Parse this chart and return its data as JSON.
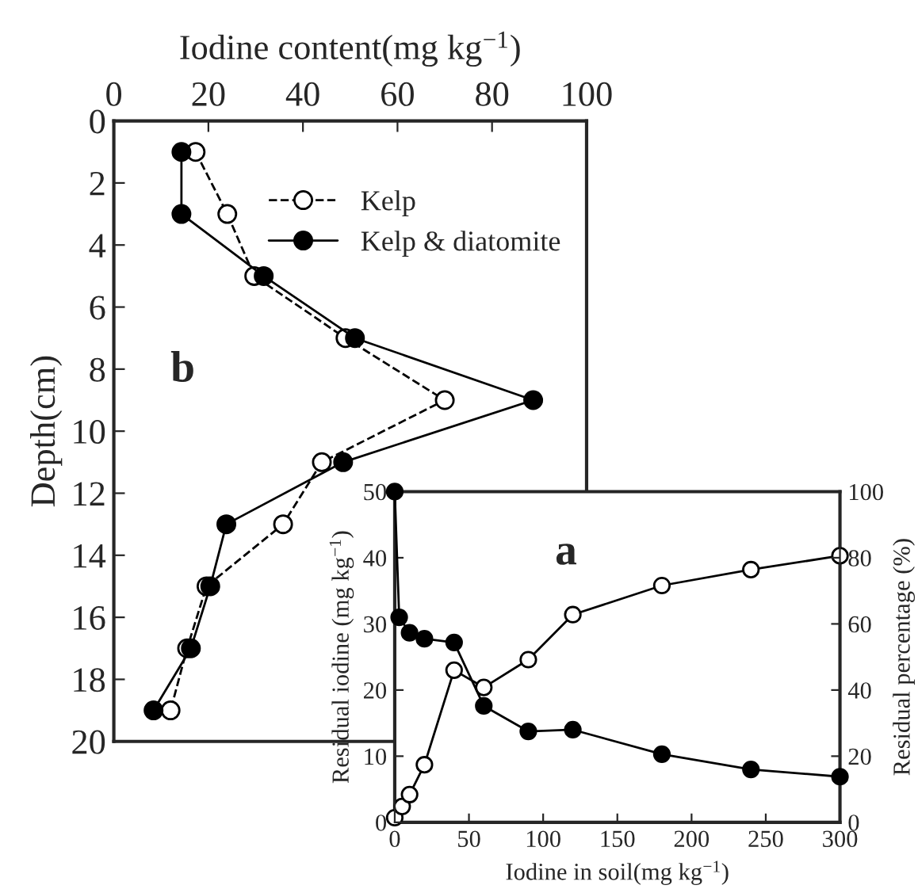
{
  "chart_data": [
    {
      "type": "line",
      "xlabel": "Iodine content(mg kg$^{−1}$)",
      "ylabel": "Depth(cm)",
      "xlim": [
        0,
        100
      ],
      "xticks": [
        0,
        20,
        40,
        60,
        80,
        100
      ],
      "ylim": [
        20,
        0
      ],
      "yticks": [
        0,
        2,
        4,
        6,
        8,
        10,
        12,
        14,
        16,
        18,
        20
      ],
      "legend": "top right",
      "marker": "circle",
      "annotations": [
        "b"
      ],
      "series": [
        {
          "name": "Kelp",
          "color": "#000000",
          "line_style": "dashed",
          "x": [
            17.3,
            24,
            29.7,
            49,
            70,
            44,
            35.8,
            19.6,
            15.5,
            12
          ],
          "values": [
            1,
            3,
            5,
            7,
            9,
            11,
            13,
            15,
            17,
            19
          ]
        },
        {
          "name": "Kelp & diatomite",
          "color": "#000000",
          "line_style": "solid",
          "x": [
            14.3,
            14.3,
            31.7,
            51,
            88.7,
            48.5,
            23.8,
            20.4,
            16.3,
            8.4
          ],
          "values": [
            1,
            3,
            5,
            7,
            9,
            11,
            13,
            15,
            17,
            19
          ]
        }
      ]
    },
    {
      "type": "line",
      "xlabel": "Iodine in soil(mg kg$^{−1}$)",
      "ylabel": "Residual iodine (mg kg$^{−1}$)",
      "y2label": "Residual percentage (%)",
      "xlim": [
        0,
        300
      ],
      "xticks": [
        0,
        50,
        100,
        150,
        200,
        250,
        300
      ],
      "ylim": [
        0,
        50
      ],
      "yticks": [
        0,
        10,
        20,
        30,
        40,
        50
      ],
      "y2lim": [
        0,
        100
      ],
      "y2ticks": [
        0,
        20,
        40,
        60,
        80,
        100
      ],
      "marker": "circle",
      "line_style": "solid",
      "annotations": [
        "a"
      ],
      "series": [
        {
          "color": "#000000",
          "x": [
            0,
            5,
            10,
            20,
            40,
            60,
            90,
            120,
            180,
            240,
            300
          ],
          "values": [
            0.7,
            2.4,
            4.2,
            8.7,
            23,
            20.4,
            24.6,
            31.4,
            35.8,
            38.2,
            40.3
          ]
        },
        {
          "color": "#000000",
          "axis": "y2",
          "x": [
            0,
            3,
            10,
            20,
            40,
            60,
            90,
            120,
            180,
            240,
            300
          ],
          "values": [
            100,
            62,
            57.3,
            55.5,
            54.4,
            35.2,
            27.5,
            28,
            20.6,
            16,
            13.8
          ]
        }
      ]
    }
  ]
}
